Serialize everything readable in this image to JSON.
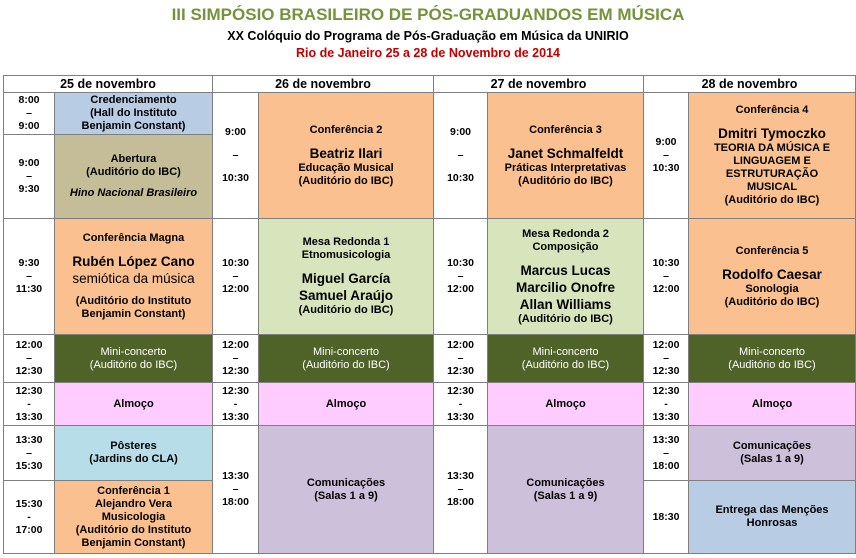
{
  "header": {
    "title": "III SIMPÓSIO BRASILEIRO DE PÓS-GRADUANDOS EM MÚSICA",
    "subtitle": "XX Colóquio do Programa de Pós-Graduação em Música da UNIRIO",
    "dates": "Rio de Janeiro 25 a 28 de Novembro de 2014"
  },
  "colors": {
    "title": "#76923c",
    "dates": "#c00000",
    "credenciamento": "#b8cce4",
    "abertura": "#c4bd97",
    "conferencia": "#fac090",
    "mesa": "#d7e4bc",
    "mini_concerto": "#4f6228",
    "almoco": "#ffccff",
    "posteres": "#b7dee8",
    "comunicacoes": "#ccc0da",
    "mencoes": "#b8cce4"
  },
  "days": [
    "25 de novembro",
    "26 de novembro",
    "27 de novembro",
    "28 de novembro"
  ],
  "d25": {
    "times": [
      [
        "8:00",
        "–",
        "9:00"
      ],
      [
        "9:00",
        "–",
        "9:30"
      ],
      [
        "9:30",
        "–",
        "11:30"
      ],
      [
        "12:00",
        "–",
        "12:30"
      ],
      [
        "12:30",
        "-",
        "13:30"
      ],
      [
        "13:30",
        "–",
        "15:30"
      ],
      [
        "15:30",
        "-",
        "17:00"
      ]
    ],
    "events": [
      [
        "Credenciamento",
        "(Hall do Instituto",
        "Benjamin Constant)"
      ],
      [
        "Abertura",
        "(Auditório do IBC)",
        "Hino Nacional Brasileiro"
      ],
      [
        "Conferência Magna",
        "Rubén López Cano",
        "semiótica da música",
        "(Auditório do Instituto",
        "Benjamin Constant)"
      ],
      [
        "Mini-concerto",
        "(Auditório do IBC)"
      ],
      [
        "Almoço"
      ],
      [
        "Pôsteres",
        "(Jardins do CLA)"
      ],
      [
        "Conferência 1",
        "Alejandro Vera",
        "Musicologia",
        "(Auditório do Instituto",
        "Benjamin Constant)"
      ]
    ]
  },
  "d26": {
    "times": [
      [
        "9:00",
        "–",
        "10:30"
      ],
      [
        "10:30",
        "–",
        "12:00"
      ],
      [
        "12:00",
        "–",
        "12:30"
      ],
      [
        "12:30",
        "-",
        "13:30"
      ],
      [
        "13:30",
        "–",
        "18:00"
      ]
    ],
    "events": [
      [
        "Conferência 2",
        "Beatriz Ilari",
        "Educação Musical",
        "(Auditório do IBC)"
      ],
      [
        "Mesa Redonda 1",
        "Etnomusicologia",
        "Miguel García",
        "Samuel Araújo",
        "(Auditório do IBC)"
      ],
      [
        "Mini-concerto",
        "(Auditório do IBC)"
      ],
      [
        "Almoço"
      ],
      [
        "Comunicações",
        "(Salas 1 a 9)"
      ]
    ]
  },
  "d27": {
    "times": [
      [
        "9:00",
        "–",
        "10:30"
      ],
      [
        "10:30",
        "–",
        "12:00"
      ],
      [
        "12:00",
        "–",
        "12:30"
      ],
      [
        "12:30",
        "-",
        "13:30"
      ],
      [
        "13:30",
        "–",
        "18:00"
      ]
    ],
    "events": [
      [
        "Conferência 3",
        "Janet Schmalfeldt",
        "Práticas Interpretativas",
        "(Auditório do IBC)"
      ],
      [
        "Mesa Redonda 2",
        "Composição",
        "Marcus Lucas",
        "Marcilio Onofre",
        "Allan Williams",
        "(Auditório do IBC)"
      ],
      [
        "Mini-concerto",
        "(Auditório do IBC)"
      ],
      [
        "Almoço"
      ],
      [
        "Comunicações",
        "(Salas 1 a 9)"
      ]
    ]
  },
  "d28": {
    "times": [
      [
        "9:00",
        "–",
        "10:30"
      ],
      [
        "10:30",
        "–",
        "12:00"
      ],
      [
        "12:00",
        "–",
        "12:30"
      ],
      [
        "12:30",
        "-",
        "13:30"
      ],
      [
        "13:30",
        "–",
        "18:00"
      ],
      [
        "18:30"
      ]
    ],
    "events": [
      [
        "Conferência 4",
        "Dmitri Tymoczko",
        "TEORIA DA MÚSICA E",
        "LINGUAGEM E",
        "ESTRUTURAÇÃO",
        "MUSICAL",
        "(Auditório do IBC)"
      ],
      [
        "Conferência 5",
        "Rodolfo Caesar",
        "Sonologia",
        "(Auditório do IBC)"
      ],
      [
        "Mini-concerto",
        "(Auditório do IBC)"
      ],
      [
        "Almoço"
      ],
      [
        "Comunicações",
        "(Salas 1 a 9)"
      ],
      [
        "Entrega das Menções",
        "Honrosas"
      ]
    ]
  }
}
